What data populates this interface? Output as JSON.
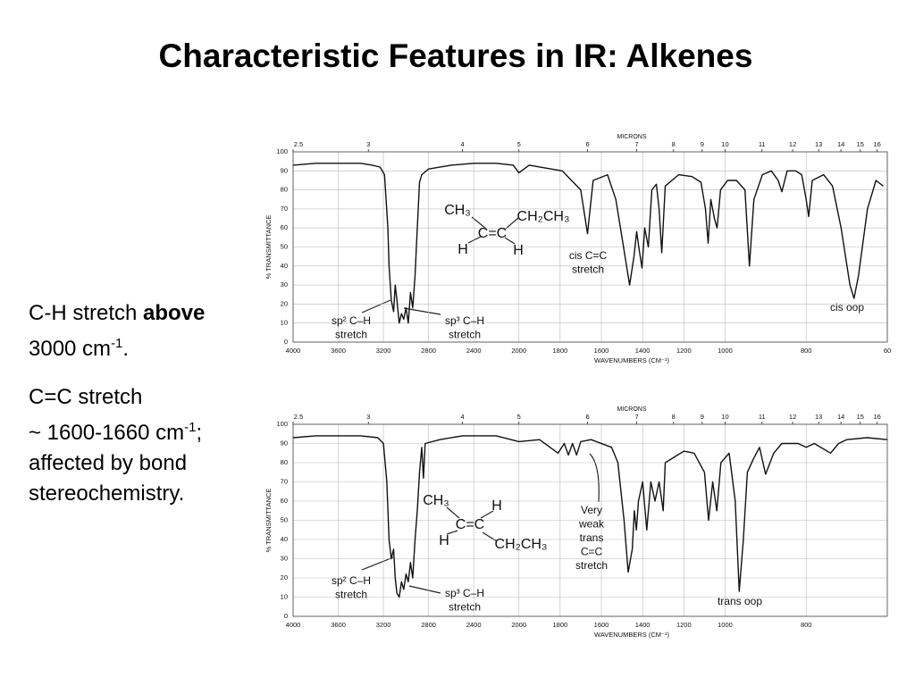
{
  "title": "Characteristic Features in IR: Alkenes",
  "notes": [
    [
      "C-H stretch",
      "above",
      "3000 cm",
      "-1",
      "."
    ],
    [
      "C=C stretch",
      "~ 1600-1660 cm",
      "-1",
      ";",
      "affected by bond",
      "stereochemistry."
    ]
  ],
  "chart_data": [
    {
      "type": "line",
      "color": "#111",
      "ylabel": "% TRANSMITTANCE",
      "xlabel": "WAVENUMBERS (CM⁻¹)",
      "x2label": "MICRONS",
      "xlim": [
        4000,
        600
      ],
      "ylim": [
        0,
        100
      ],
      "xscale": {
        "type": "piecewise",
        "breaks": [
          2000,
          1000
        ]
      },
      "xticks": [
        4000,
        3600,
        3200,
        2800,
        2400,
        2000,
        1800,
        1600,
        1400,
        1200,
        1000,
        800,
        {
          "value": 600,
          "label": "60"
        }
      ],
      "x2ticks": [
        2.5,
        3,
        4,
        5,
        6,
        7,
        8,
        9,
        10,
        11,
        12,
        13,
        14,
        15,
        16
      ],
      "yticks": [
        0,
        10,
        20,
        30,
        40,
        50,
        60,
        70,
        80,
        90,
        100
      ],
      "grid": true,
      "x": [
        4000,
        3800,
        3600,
        3400,
        3300,
        3230,
        3190,
        3160,
        3150,
        3130,
        3110,
        3095,
        3080,
        3060,
        3040,
        3020,
        3000,
        2980,
        2960,
        2940,
        2920,
        2900,
        2880,
        2860,
        2800,
        2600,
        2400,
        2200,
        2050,
        2000,
        1950,
        1790,
        1700,
        1667,
        1640,
        1570,
        1530,
        1485,
        1463,
        1442,
        1429,
        1416,
        1403,
        1390,
        1372,
        1355,
        1333,
        1320,
        1307,
        1290,
        1225,
        1160,
        1117,
        1095,
        1082,
        1069,
        1052,
        1039,
        1022,
        994,
        972,
        951,
        940,
        929,
        908,
        886,
        869,
        860,
        847,
        826,
        811,
        800,
        794,
        785,
        757,
        735,
        714,
        692,
        682,
        671,
        649,
        628,
        610
      ],
      "values": [
        93,
        94,
        94,
        94,
        93,
        92,
        88,
        60,
        40,
        22,
        16,
        30,
        22,
        10,
        15,
        12,
        18,
        10,
        26,
        18,
        35,
        60,
        84,
        88,
        91,
        93,
        94,
        94,
        93,
        89,
        93,
        90,
        80,
        57,
        85,
        88,
        75,
        45,
        30,
        45,
        58,
        48,
        39,
        60,
        50,
        80,
        83,
        70,
        47,
        82,
        88,
        87,
        84,
        70,
        52,
        75,
        65,
        60,
        80,
        85,
        85,
        80,
        40,
        75,
        88,
        90,
        85,
        79,
        90,
        90,
        88,
        75,
        66,
        85,
        88,
        82,
        60,
        30,
        23,
        35,
        70,
        85,
        82
      ],
      "annotations": [
        [
          "sp² C–H",
          "stretch"
        ],
        [
          "sp³ C–H",
          "stretch"
        ],
        [
          "cis C=C",
          "stretch"
        ],
        [
          "cis oop"
        ],
        [
          "CH₃"
        ],
        [
          "CH₂CH₃"
        ],
        [
          "C=C"
        ],
        [
          "H"
        ],
        [
          "H"
        ]
      ]
    },
    {
      "type": "line",
      "color": "#111",
      "ylabel": "% TRANSMITTANCE",
      "xlabel": "WAVENUMBERS (CM⁻¹)",
      "x2label": "MICRONS",
      "xlim": [
        4000,
        600
      ],
      "ylim": [
        0,
        100
      ],
      "xscale": {
        "type": "piecewise",
        "breaks": [
          2000,
          1000
        ]
      },
      "xticks": [
        4000,
        3600,
        3200,
        2800,
        2400,
        2000,
        1800,
        1600,
        1400,
        1200,
        1000,
        800
      ],
      "x2ticks": [
        2.5,
        3,
        4,
        5,
        6,
        7,
        8,
        9,
        10,
        11,
        12,
        13,
        14,
        15,
        16
      ],
      "yticks": [
        0,
        10,
        20,
        30,
        40,
        50,
        60,
        70,
        80,
        90,
        100
      ],
      "grid": true,
      "x": [
        4000,
        3800,
        3600,
        3400,
        3250,
        3200,
        3170,
        3150,
        3130,
        3110,
        3095,
        3080,
        3060,
        3040,
        3020,
        3000,
        2980,
        2960,
        2940,
        2920,
        2900,
        2880,
        2860,
        2845,
        2830,
        2700,
        2500,
        2200,
        2000,
        1900,
        1810,
        1780,
        1760,
        1740,
        1720,
        1700,
        1650,
        1550,
        1520,
        1490,
        1470,
        1450,
        1440,
        1430,
        1420,
        1400,
        1380,
        1360,
        1340,
        1320,
        1300,
        1290,
        1200,
        1150,
        1100,
        1080,
        1060,
        1040,
        1020,
        990,
        975,
        965,
        955,
        945,
        930,
        915,
        900,
        880,
        860,
        820,
        800,
        780,
        740,
        720,
        700,
        650,
        600
      ],
      "values": [
        93,
        94,
        94,
        94,
        93,
        90,
        70,
        40,
        30,
        35,
        20,
        12,
        10,
        18,
        14,
        22,
        18,
        28,
        20,
        40,
        55,
        75,
        88,
        72,
        90,
        92,
        94,
        94,
        91,
        92,
        85,
        90,
        84,
        90,
        84,
        91,
        92,
        88,
        80,
        50,
        23,
        35,
        55,
        45,
        60,
        70,
        45,
        70,
        60,
        70,
        55,
        80,
        86,
        85,
        75,
        50,
        70,
        55,
        80,
        85,
        60,
        13,
        40,
        75,
        82,
        88,
        74,
        85,
        90,
        90,
        88,
        90,
        85,
        90,
        92,
        93,
        92
      ],
      "annotations": [
        [
          "sp² C–H",
          "stretch"
        ],
        [
          "sp³ C–H",
          "stretch"
        ],
        [
          "Very",
          "weak",
          "trans",
          "C=C",
          "stretch"
        ],
        [
          "trans oop"
        ],
        [
          "CH₃"
        ],
        [
          "H"
        ],
        [
          "C=C"
        ],
        [
          "H"
        ],
        [
          "CH₂CH₃"
        ]
      ]
    }
  ]
}
